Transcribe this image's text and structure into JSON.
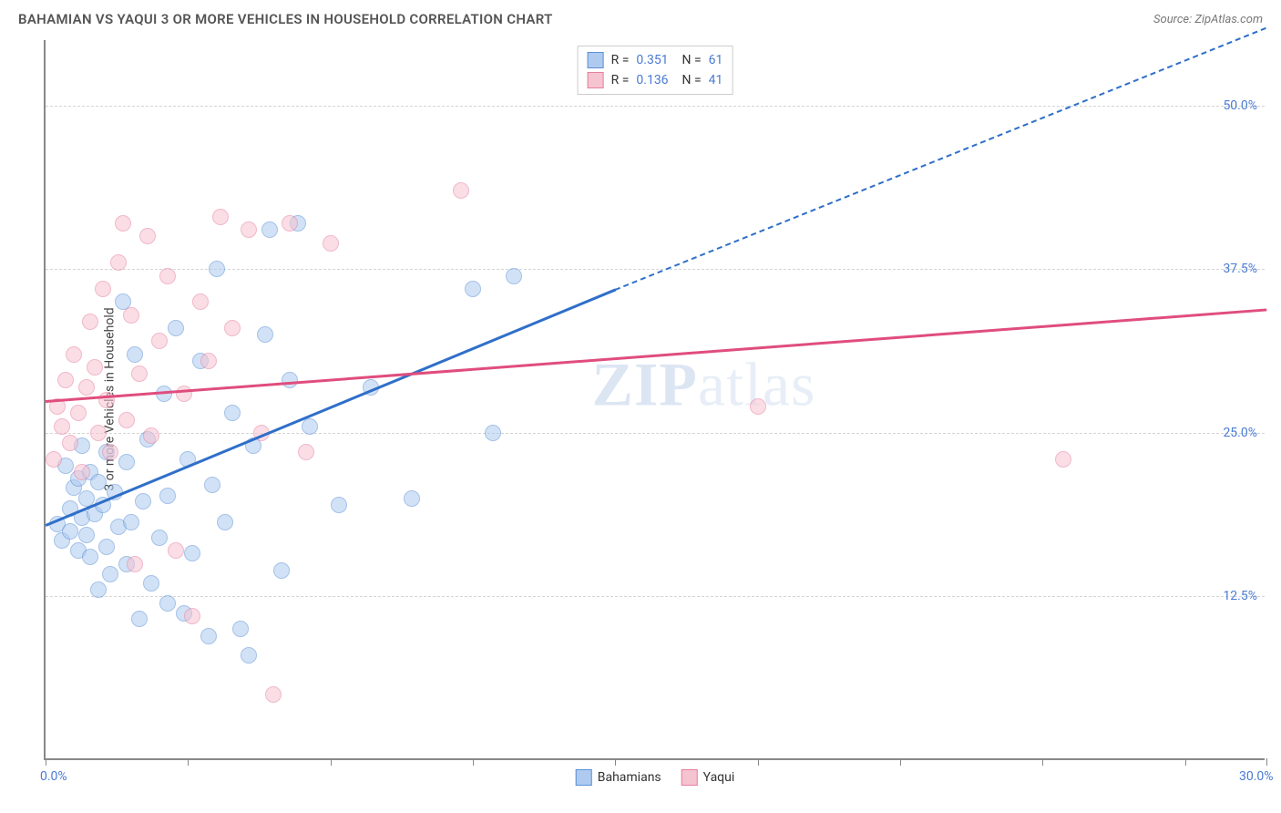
{
  "header": {
    "title": "BAHAMIAN VS YAQUI 3 OR MORE VEHICLES IN HOUSEHOLD CORRELATION CHART",
    "source_label": "Source:",
    "source_name": "ZipAtlas.com"
  },
  "watermark": {
    "prefix": "ZIP",
    "suffix": "atlas"
  },
  "chart": {
    "type": "scatter-with-regression",
    "y_axis_label": "3 or more Vehicles in Household",
    "background_color": "#ffffff",
    "axis_color": "#888888",
    "grid_color": "#d5d5d5",
    "tick_label_color": "#4a7bd4",
    "tick_fontsize": 14,
    "label_fontsize": 14,
    "xlim": [
      0,
      30
    ],
    "ylim": [
      0,
      55
    ],
    "x_ticks": [
      0,
      3.5,
      7,
      10.5,
      14,
      17.5,
      21,
      24.5,
      28,
      30
    ],
    "x_tick_labels": {
      "0": "0.0%",
      "30": "30.0%"
    },
    "y_gridlines": [
      12.5,
      25.0,
      37.5,
      50.0
    ],
    "y_tick_labels": [
      "12.5%",
      "25.0%",
      "37.5%",
      "50.0%"
    ],
    "point_radius": 9,
    "point_opacity": 0.55,
    "series": [
      {
        "name": "Bahamians",
        "fill_color": "#aecbef",
        "stroke_color": "#5b8fd6",
        "line_color": "#2f6fc9",
        "r_value": "0.351",
        "n_value": "61",
        "regression": {
          "x1": 0,
          "y1": 18.0,
          "x2": 14.0,
          "y2": 36.0,
          "dashed_to_x": 30.0,
          "dashed_to_y": 56.0
        },
        "points": [
          [
            0.3,
            18.0
          ],
          [
            0.4,
            16.8
          ],
          [
            0.5,
            22.5
          ],
          [
            0.6,
            17.5
          ],
          [
            0.6,
            19.2
          ],
          [
            0.7,
            20.8
          ],
          [
            0.8,
            16.0
          ],
          [
            0.8,
            21.5
          ],
          [
            0.9,
            18.5
          ],
          [
            0.9,
            24.0
          ],
          [
            1.0,
            17.2
          ],
          [
            1.0,
            20.0
          ],
          [
            1.1,
            15.5
          ],
          [
            1.1,
            22.0
          ],
          [
            1.2,
            18.8
          ],
          [
            1.3,
            13.0
          ],
          [
            1.3,
            21.2
          ],
          [
            1.4,
            19.5
          ],
          [
            1.5,
            16.3
          ],
          [
            1.5,
            23.5
          ],
          [
            1.6,
            14.2
          ],
          [
            1.7,
            20.5
          ],
          [
            1.8,
            17.8
          ],
          [
            1.9,
            35.0
          ],
          [
            2.0,
            15.0
          ],
          [
            2.0,
            22.8
          ],
          [
            2.1,
            18.2
          ],
          [
            2.2,
            31.0
          ],
          [
            2.3,
            10.8
          ],
          [
            2.4,
            19.8
          ],
          [
            2.5,
            24.5
          ],
          [
            2.6,
            13.5
          ],
          [
            2.8,
            17.0
          ],
          [
            2.9,
            28.0
          ],
          [
            3.0,
            12.0
          ],
          [
            3.0,
            20.2
          ],
          [
            3.2,
            33.0
          ],
          [
            3.4,
            11.2
          ],
          [
            3.5,
            23.0
          ],
          [
            3.6,
            15.8
          ],
          [
            3.8,
            30.5
          ],
          [
            4.0,
            9.5
          ],
          [
            4.1,
            21.0
          ],
          [
            4.2,
            37.5
          ],
          [
            4.4,
            18.2
          ],
          [
            4.6,
            26.5
          ],
          [
            4.8,
            10.0
          ],
          [
            5.0,
            8.0
          ],
          [
            5.1,
            24.0
          ],
          [
            5.4,
            32.5
          ],
          [
            5.5,
            40.5
          ],
          [
            5.8,
            14.5
          ],
          [
            6.0,
            29.0
          ],
          [
            6.2,
            41.0
          ],
          [
            6.5,
            25.5
          ],
          [
            7.2,
            19.5
          ],
          [
            8.0,
            28.5
          ],
          [
            9.0,
            20.0
          ],
          [
            10.5,
            36.0
          ],
          [
            11.0,
            25.0
          ],
          [
            11.5,
            37.0
          ]
        ]
      },
      {
        "name": "Yaqui",
        "fill_color": "#f6c3d0",
        "stroke_color": "#e67fa0",
        "line_color": "#e04d7d",
        "r_value": "0.136",
        "n_value": "41",
        "regression": {
          "x1": 0,
          "y1": 27.5,
          "x2": 30.0,
          "y2": 34.5,
          "dashed_to_x": 30.0,
          "dashed_to_y": 34.5
        },
        "points": [
          [
            0.2,
            23.0
          ],
          [
            0.3,
            27.0
          ],
          [
            0.4,
            25.5
          ],
          [
            0.5,
            29.0
          ],
          [
            0.6,
            24.2
          ],
          [
            0.7,
            31.0
          ],
          [
            0.8,
            26.5
          ],
          [
            0.9,
            22.0
          ],
          [
            1.0,
            28.5
          ],
          [
            1.1,
            33.5
          ],
          [
            1.2,
            30.0
          ],
          [
            1.3,
            25.0
          ],
          [
            1.4,
            36.0
          ],
          [
            1.5,
            27.5
          ],
          [
            1.6,
            23.5
          ],
          [
            1.8,
            38.0
          ],
          [
            1.9,
            41.0
          ],
          [
            2.0,
            26.0
          ],
          [
            2.1,
            34.0
          ],
          [
            2.3,
            29.5
          ],
          [
            2.5,
            40.0
          ],
          [
            2.6,
            24.8
          ],
          [
            2.8,
            32.0
          ],
          [
            3.0,
            37.0
          ],
          [
            3.2,
            16.0
          ],
          [
            3.4,
            28.0
          ],
          [
            3.6,
            11.0
          ],
          [
            3.8,
            35.0
          ],
          [
            4.0,
            30.5
          ],
          [
            4.3,
            41.5
          ],
          [
            4.6,
            33.0
          ],
          [
            5.0,
            40.5
          ],
          [
            5.3,
            25.0
          ],
          [
            5.6,
            5.0
          ],
          [
            6.0,
            41.0
          ],
          [
            6.4,
            23.5
          ],
          [
            7.0,
            39.5
          ],
          [
            10.2,
            43.5
          ],
          [
            17.5,
            27.0
          ],
          [
            25.0,
            23.0
          ],
          [
            2.2,
            15.0
          ]
        ]
      }
    ],
    "legend_bottom": [
      {
        "label": "Bahamians",
        "fill": "#aecbef",
        "stroke": "#5b8fd6"
      },
      {
        "label": "Yaqui",
        "fill": "#f6c3d0",
        "stroke": "#e67fa0"
      }
    ]
  }
}
